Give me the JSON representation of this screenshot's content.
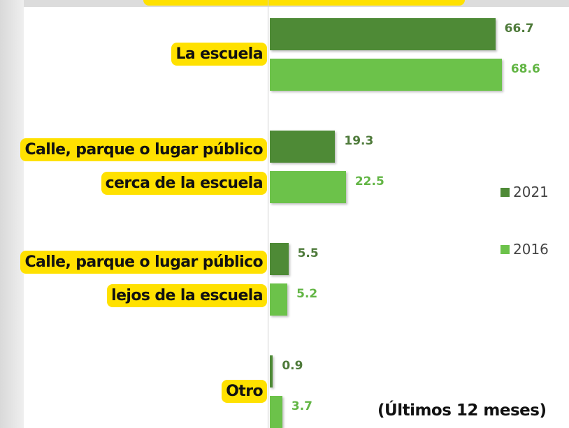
{
  "chart_data": {
    "type": "bar",
    "orientation": "horizontal",
    "categories": [
      "La escuela",
      "Calle, parque o lugar público cerca de la escuela",
      "Calle, parque o lugar público lejos de la escuela",
      "Otro"
    ],
    "series": [
      {
        "name": "2021",
        "color": "#4e8a36",
        "label_color": "#4e7a3a",
        "values": [
          66.7,
          19.3,
          5.5,
          0.9
        ]
      },
      {
        "name": "2016",
        "color": "#6cc24a",
        "label_color": "#62b544",
        "values": [
          68.6,
          22.5,
          5.2,
          3.7
        ]
      }
    ],
    "xlim": [
      0,
      80
    ],
    "annotation": "(Últimos 12 meses)"
  }
}
